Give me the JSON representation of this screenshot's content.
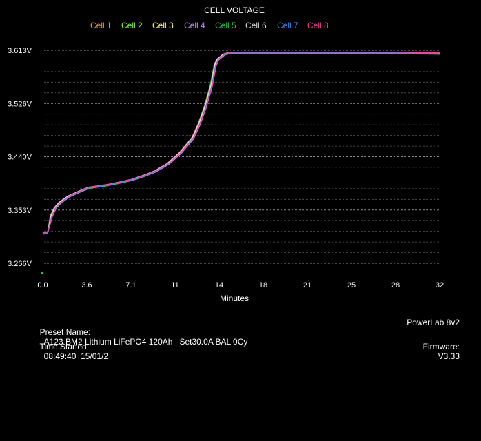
{
  "chart_data": {
    "type": "line",
    "title": "CELL VOLTAGE",
    "xlabel": "Minutes",
    "ylabel": "",
    "x_ticks": [
      "0.0",
      "3.6",
      "7.1",
      "11",
      "14",
      "18",
      "21",
      "25",
      "28",
      "32"
    ],
    "y_ticks": [
      "3.613V",
      "3.526V",
      "3.440V",
      "3.353V",
      "3.266V"
    ],
    "xlim": [
      0,
      32
    ],
    "ylim": [
      3.266,
      3.613
    ],
    "grid": true,
    "legend_position": "top-center",
    "series": [
      {
        "name": "Cell 1",
        "color": "#ff8c2a",
        "offset": 0.0
      },
      {
        "name": "Cell 2",
        "color": "#7aff4a",
        "offset": -0.001
      },
      {
        "name": "Cell 3",
        "color": "#ffff44",
        "offset": 0.0005
      },
      {
        "name": "Cell 4",
        "color": "#c08cff",
        "offset": -0.0008
      },
      {
        "name": "Cell 5",
        "color": "#22c93c",
        "offset": -0.0015
      },
      {
        "name": "Cell 6",
        "color": "#dddddd",
        "offset": 0.0008
      },
      {
        "name": "Cell 7",
        "color": "#3a8cff",
        "offset": -0.0004
      },
      {
        "name": "Cell 8",
        "color": "#ff3c9c",
        "offset": 0.001
      }
    ],
    "x": [
      0.0,
      0.4,
      0.6,
      0.9,
      1.3,
      2.0,
      3.0,
      3.6,
      5.0,
      6.0,
      7.1,
      8.0,
      9.0,
      10.0,
      11.0,
      12.0,
      12.5,
      13.0,
      13.5,
      13.8,
      14.0,
      14.5,
      15.0,
      18.0,
      21.0,
      25.0,
      28.0,
      32.0
    ],
    "values": [
      3.315,
      3.316,
      3.343,
      3.356,
      3.365,
      3.375,
      3.384,
      3.389,
      3.393,
      3.397,
      3.402,
      3.408,
      3.416,
      3.428,
      3.446,
      3.47,
      3.492,
      3.52,
      3.556,
      3.588,
      3.598,
      3.606,
      3.609,
      3.609,
      3.609,
      3.609,
      3.609,
      3.608
    ]
  },
  "footer": {
    "preset_label": "Preset Name:",
    "preset_value": "A123 BM2 Lithium LiFePO4 120Ah   Set30.0A BAL 0Cy",
    "time_label": "Time Started:",
    "time_value": "08:49:40  15/01/2",
    "device": "PowerLab 8v2",
    "firmware_label": "Firmware:",
    "firmware_value": "V3.33"
  }
}
